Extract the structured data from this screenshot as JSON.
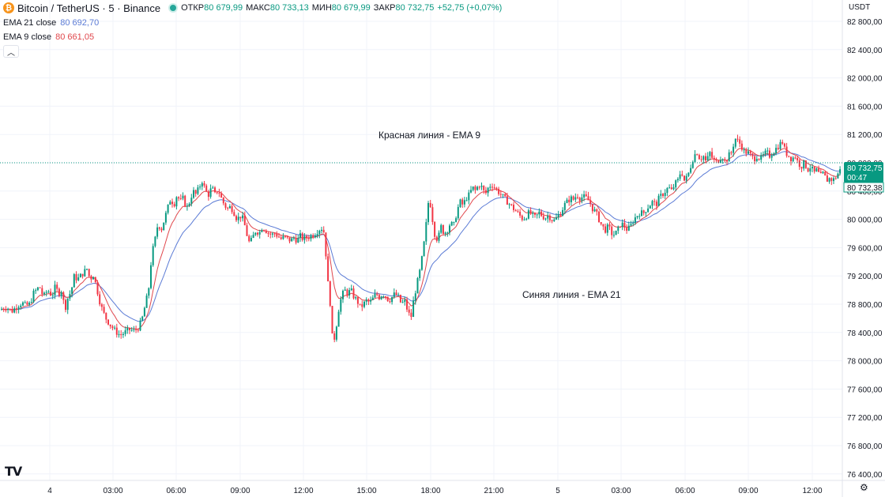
{
  "header": {
    "coin_icon": "bitcoin-icon",
    "symbol": "Bitcoin / TetherUS · 5 · Binance",
    "status_color": "#26a69a",
    "open_label": "ОТКР",
    "open_value": "80 679,99",
    "high_label": "МАКС",
    "high_value": "80 733,13",
    "low_label": "МИН",
    "low_value": "80 679,99",
    "close_label": "ЗАКР",
    "close_value": "80 732,75",
    "change": "+52,75 (+0,07%)"
  },
  "indicators": [
    {
      "label": "EMA 21 close",
      "value": "80 692,70",
      "color": "#5b7bd5"
    },
    {
      "label": "EMA 9 close",
      "value": "80 661,05",
      "color": "#e0474c"
    }
  ],
  "collapse_icon": "chevron-up-icon",
  "currency": "USDT",
  "logo_icon": "tradingview-logo",
  "settings_icon": "settings-icon",
  "chart_data": {
    "type": "candlestick",
    "ylim": [
      76300,
      83000
    ],
    "yticks": [
      "82 800,00",
      "82 400,00",
      "82 000,00",
      "81 600,00",
      "81 200,00",
      "80 800,00",
      "80 400,00",
      "80 000,00",
      "79 600,00",
      "79 200,00",
      "78 800,00",
      "78 400,00",
      "78 000,00",
      "77 600,00",
      "77 200,00",
      "76 800,00",
      "76 400,00"
    ],
    "xticks": [
      "4",
      "03:00",
      "06:00",
      "09:00",
      "12:00",
      "15:00",
      "18:00",
      "21:00",
      "5",
      "03:00",
      "06:00",
      "09:00",
      "12:00"
    ],
    "annotations": [
      "Красная линия - EMA 9",
      "Синяя линия - EMA 21"
    ],
    "last_price_label": "80 732,75",
    "countdown": "00:47",
    "ema_price_label": "80 732,38",
    "up_color": "#089981",
    "down_color": "#f23645",
    "ema9_color": "#e0474c",
    "ema21_color": "#5b7bd5",
    "close_path": [
      [
        0,
        78720
      ],
      [
        8,
        78760
      ],
      [
        15,
        78700
      ],
      [
        22,
        78780
      ],
      [
        28,
        78820
      ],
      [
        32,
        78780
      ],
      [
        38,
        78800
      ],
      [
        42,
        78950
      ],
      [
        46,
        79000
      ],
      [
        50,
        79050
      ],
      [
        55,
        78900
      ],
      [
        60,
        79000
      ],
      [
        66,
        78920
      ],
      [
        70,
        79050
      ],
      [
        74,
        78950
      ],
      [
        78,
        79000
      ],
      [
        82,
        78720
      ],
      [
        86,
        78900
      ],
      [
        90,
        78980
      ],
      [
        94,
        79200
      ],
      [
        98,
        79150
      ],
      [
        102,
        79200
      ],
      [
        106,
        79250
      ],
      [
        110,
        79300
      ],
      [
        114,
        79150
      ],
      [
        118,
        79220
      ],
      [
        122,
        79050
      ],
      [
        126,
        78850
      ],
      [
        130,
        78700
      ],
      [
        134,
        78600
      ],
      [
        140,
        78500
      ],
      [
        146,
        78420
      ],
      [
        152,
        78360
      ],
      [
        158,
        78400
      ],
      [
        164,
        78440
      ],
      [
        170,
        78420
      ],
      [
        176,
        78480
      ],
      [
        180,
        78600
      ],
      [
        184,
        78800
      ],
      [
        188,
        79000
      ],
      [
        192,
        79500
      ],
      [
        196,
        79700
      ],
      [
        200,
        79950
      ],
      [
        204,
        79850
      ],
      [
        208,
        80000
      ],
      [
        212,
        80150
      ],
      [
        216,
        80300
      ],
      [
        220,
        80200
      ],
      [
        224,
        80350
      ],
      [
        228,
        80250
      ],
      [
        232,
        80300
      ],
      [
        236,
        80150
      ],
      [
        240,
        80250
      ],
      [
        244,
        80400
      ],
      [
        248,
        80350
      ],
      [
        252,
        80450
      ],
      [
        256,
        80550
      ],
      [
        260,
        80400
      ],
      [
        264,
        80350
      ],
      [
        268,
        80450
      ],
      [
        272,
        80350
      ],
      [
        276,
        80420
      ],
      [
        280,
        80300
      ],
      [
        284,
        80200
      ],
      [
        288,
        80150
      ],
      [
        292,
        80180
      ],
      [
        296,
        80100
      ],
      [
        300,
        80000
      ],
      [
        304,
        80050
      ],
      [
        308,
        80000
      ],
      [
        312,
        79800
      ],
      [
        316,
        79650
      ],
      [
        320,
        79750
      ],
      [
        324,
        79850
      ],
      [
        328,
        79800
      ],
      [
        332,
        79900
      ],
      [
        336,
        79850
      ],
      [
        340,
        79800
      ],
      [
        344,
        79780
      ],
      [
        348,
        79800
      ],
      [
        352,
        79760
      ],
      [
        356,
        79720
      ],
      [
        360,
        79750
      ],
      [
        364,
        79720
      ],
      [
        368,
        79700
      ],
      [
        372,
        79740
      ],
      [
        376,
        79700
      ],
      [
        380,
        79760
      ],
      [
        384,
        79720
      ],
      [
        388,
        79740
      ],
      [
        392,
        79760
      ],
      [
        396,
        79780
      ],
      [
        400,
        79820
      ],
      [
        404,
        79860
      ],
      [
        408,
        79880
      ],
      [
        411,
        79780
      ],
      [
        414,
        79200
      ],
      [
        418,
        78800
      ],
      [
        421,
        78250
      ],
      [
        424,
        78350
      ],
      [
        428,
        78700
      ],
      [
        432,
        78900
      ],
      [
        436,
        79000
      ],
      [
        440,
        78950
      ],
      [
        444,
        79000
      ],
      [
        448,
        78900
      ],
      [
        452,
        78850
      ],
      [
        456,
        78750
      ],
      [
        460,
        78800
      ],
      [
        464,
        78850
      ],
      [
        468,
        78820
      ],
      [
        472,
        78880
      ],
      [
        476,
        78950
      ],
      [
        480,
        78900
      ],
      [
        484,
        78950
      ],
      [
        488,
        78920
      ],
      [
        492,
        78850
      ],
      [
        496,
        78900
      ],
      [
        500,
        78950
      ],
      [
        504,
        78900
      ],
      [
        508,
        78800
      ],
      [
        512,
        78850
      ],
      [
        516,
        78700
      ],
      [
        520,
        78600
      ],
      [
        524,
        78900
      ],
      [
        528,
        79100
      ],
      [
        532,
        79300
      ],
      [
        536,
        79600
      ],
      [
        540,
        80000
      ],
      [
        543,
        80350
      ],
      [
        546,
        80100
      ],
      [
        550,
        79800
      ],
      [
        554,
        79700
      ],
      [
        558,
        79900
      ],
      [
        562,
        79800
      ],
      [
        566,
        79850
      ],
      [
        570,
        79950
      ],
      [
        574,
        79900
      ],
      [
        578,
        80100
      ],
      [
        582,
        80250
      ],
      [
        586,
        80200
      ],
      [
        590,
        80300
      ],
      [
        594,
        80350
      ],
      [
        598,
        80450
      ],
      [
        602,
        80400
      ],
      [
        606,
        80500
      ],
      [
        610,
        80450
      ],
      [
        614,
        80350
      ],
      [
        618,
        80450
      ],
      [
        622,
        80500
      ],
      [
        626,
        80450
      ],
      [
        630,
        80400
      ],
      [
        634,
        80350
      ],
      [
        638,
        80300
      ],
      [
        642,
        80250
      ],
      [
        646,
        80200
      ],
      [
        650,
        80150
      ],
      [
        654,
        80100
      ],
      [
        658,
        80050
      ],
      [
        662,
        80000
      ],
      [
        666,
        80050
      ],
      [
        670,
        80100
      ],
      [
        674,
        80050
      ],
      [
        678,
        80020
      ],
      [
        682,
        80100
      ],
      [
        686,
        80050
      ],
      [
        690,
        80020
      ],
      [
        694,
        80060
      ],
      [
        698,
        80000
      ],
      [
        702,
        79980
      ],
      [
        706,
        80050
      ],
      [
        710,
        80100
      ],
      [
        714,
        80200
      ],
      [
        718,
        80250
      ],
      [
        722,
        80300
      ],
      [
        726,
        80280
      ],
      [
        730,
        80350
      ],
      [
        734,
        80300
      ],
      [
        738,
        80320
      ],
      [
        742,
        80300
      ],
      [
        746,
        80250
      ],
      [
        750,
        80150
      ],
      [
        754,
        80100
      ],
      [
        758,
        80000
      ],
      [
        762,
        79900
      ],
      [
        766,
        79850
      ],
      [
        770,
        79900
      ],
      [
        774,
        79800
      ],
      [
        778,
        79780
      ],
      [
        782,
        79850
      ],
      [
        786,
        79950
      ],
      [
        790,
        79900
      ],
      [
        794,
        79850
      ],
      [
        798,
        79900
      ],
      [
        802,
        80000
      ],
      [
        806,
        80050
      ],
      [
        810,
        80100
      ],
      [
        814,
        80080
      ],
      [
        818,
        80150
      ],
      [
        822,
        80200
      ],
      [
        826,
        80250
      ],
      [
        830,
        80200
      ],
      [
        834,
        80300
      ],
      [
        838,
        80350
      ],
      [
        842,
        80400
      ],
      [
        846,
        80450
      ],
      [
        850,
        80400
      ],
      [
        854,
        80500
      ],
      [
        858,
        80550
      ],
      [
        862,
        80700
      ],
      [
        866,
        80550
      ],
      [
        870,
        80600
      ],
      [
        874,
        80750
      ],
      [
        878,
        80900
      ],
      [
        882,
        80950
      ],
      [
        886,
        80850
      ],
      [
        890,
        80900
      ],
      [
        894,
        80800
      ],
      [
        898,
        80950
      ],
      [
        902,
        80850
      ],
      [
        906,
        80800
      ],
      [
        910,
        80850
      ],
      [
        914,
        80900
      ],
      [
        918,
        80800
      ],
      [
        922,
        80900
      ],
      [
        926,
        80950
      ],
      [
        930,
        81150
      ],
      [
        934,
        81100
      ],
      [
        938,
        81050
      ],
      [
        942,
        80950
      ],
      [
        946,
        80950
      ],
      [
        950,
        80900
      ],
      [
        954,
        80850
      ],
      [
        958,
        80900
      ],
      [
        962,
        80850
      ],
      [
        966,
        80900
      ],
      [
        970,
        80950
      ],
      [
        974,
        80900
      ],
      [
        978,
        80950
      ],
      [
        982,
        81000
      ],
      [
        986,
        81050
      ],
      [
        990,
        81100
      ],
      [
        994,
        80950
      ],
      [
        998,
        80900
      ],
      [
        1002,
        80850
      ],
      [
        1006,
        80900
      ],
      [
        1010,
        80800
      ],
      [
        1014,
        80750
      ],
      [
        1018,
        80800
      ],
      [
        1022,
        80700
      ],
      [
        1026,
        80750
      ],
      [
        1030,
        80650
      ],
      [
        1034,
        80700
      ],
      [
        1038,
        80600
      ],
      [
        1042,
        80650
      ],
      [
        1046,
        80550
      ],
      [
        1050,
        80580
      ],
      [
        1054,
        80550
      ],
      [
        1058,
        80600
      ],
      [
        1062,
        80680
      ],
      [
        1066,
        80732.75
      ]
    ]
  }
}
